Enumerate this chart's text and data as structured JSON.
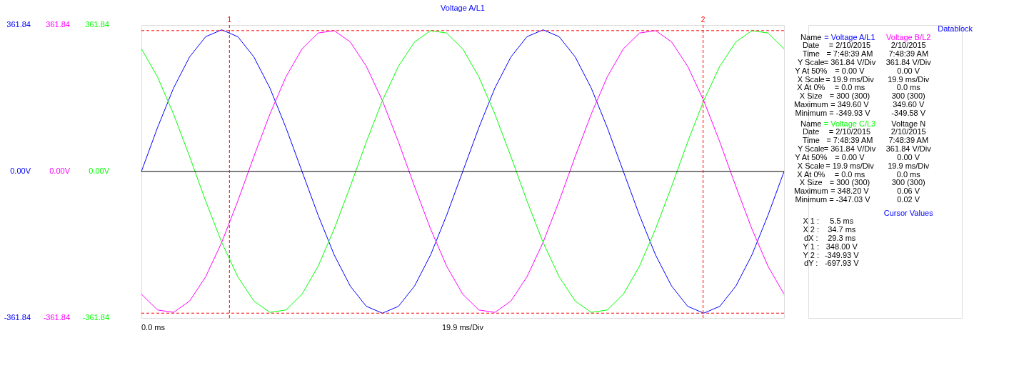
{
  "chart_data": {
    "type": "line",
    "title": "Voltage A/L1",
    "xlabel": "19.9 ms/Div",
    "categories": [
      null,
      null,
      null,
      null,
      null,
      null,
      null,
      null,
      null,
      null,
      null,
      null,
      null,
      null,
      null,
      null,
      null,
      null,
      null,
      null,
      null,
      null,
      null,
      null,
      null,
      null,
      null,
      null,
      null,
      null,
      null,
      null,
      null,
      null,
      null,
      null,
      null,
      null,
      null,
      null,
      null
    ],
    "series": [
      {
        "color": "#0000ff",
        "values": [
          0,
          108,
          206,
          283,
          333,
          350,
          333,
          283,
          206,
          108,
          0,
          -108,
          -206,
          -283,
          -333,
          -350,
          -333,
          -283,
          -206,
          -108,
          0,
          108,
          206,
          283,
          333,
          350,
          333,
          283,
          206,
          108,
          0,
          -108,
          -206,
          -283,
          -333,
          -350,
          -333,
          -283,
          -206,
          -108,
          0
        ]
      },
      {
        "color": "#ff00ff",
        "values": [
          -303,
          -342,
          -348,
          -320,
          -260,
          -175,
          -73,
          37,
          142,
          234,
          303,
          342,
          348,
          320,
          260,
          175,
          73,
          -37,
          -142,
          -234,
          -303,
          -342,
          -348,
          -320,
          -260,
          -175,
          -73,
          37,
          142,
          234,
          303,
          342,
          348,
          320,
          260,
          175,
          73,
          -37,
          -142,
          -234,
          -303
        ]
      },
      {
        "color": "#00ff00",
        "values": [
          303,
          234,
          142,
          37,
          -73,
          -175,
          -260,
          -320,
          -348,
          -342,
          -303,
          -234,
          -142,
          -37,
          73,
          175,
          260,
          320,
          348,
          342,
          303,
          234,
          142,
          37,
          -73,
          -175,
          -260,
          -320,
          -348,
          -342,
          -303,
          -234,
          -142,
          -37,
          73,
          175,
          260,
          320,
          348,
          342,
          303
        ]
      }
    ],
    "ylim": [
      -361.84,
      361.84
    ],
    "yticks": [
      {
        "value": -361.84,
        "label": "-361.84"
      },
      {
        "value": 0,
        "label": "0.00V"
      },
      {
        "value": 361.84,
        "label": "361.84"
      }
    ],
    "legend": false,
    "ref_lines": [
      {
        "axis": "y",
        "value": 0,
        "color": "#000000",
        "line_style": "solid"
      },
      {
        "axis": "y",
        "value": 348.0,
        "color": "#ff0000",
        "line_style": "dashed"
      },
      {
        "axis": "y",
        "value": -349.93,
        "color": "#ff0000",
        "line_style": "dashed"
      }
    ],
    "annotations": [
      "1",
      "2",
      "0.0 ms",
      "Datablock",
      "Name",
      "= Voltage A/L1",
      "Voltage B/L2",
      "Date",
      "= 2/10/2015",
      "2/10/2015",
      "Time",
      "= 7:48:39 AM",
      "7:48:39 AM",
      "Y Scale",
      "= 361.84 V/Div",
      "361.84 V/Div",
      "Y At 50%",
      "= 0.00 V",
      "0.00 V",
      "X Scale",
      "= 19.9 ms/Div",
      "19.9 ms/Div",
      "X At 0%",
      "= 0.0 ms",
      "0.0 ms",
      "X Size",
      "= 300 (300)",
      "300 (300)",
      "Maximum",
      "= 349.60 V",
      "349.60 V",
      "Minimum",
      "= -349.93 V",
      "-349.58 V",
      "Name",
      "= Voltage C/L3",
      "Voltage N",
      "Date",
      "= 2/10/2015",
      "2/10/2015",
      "Time",
      "= 7:48:39 AM",
      "7:48:39 AM",
      "Y Scale",
      "= 361.84 V/Div",
      "361.84 V/Div",
      "Y At 50%",
      "= 0.00 V",
      "0.00 V",
      "X Scale",
      "= 19.9 ms/Div",
      "19.9 ms/Div",
      "X At 0%",
      "= 0.0 ms",
      "0.0 ms",
      "X Size",
      "= 300 (300)",
      "300 (300)",
      "Maximum",
      "= 348.20 V",
      "0.06 V",
      "Minimum",
      "= -347.03 V",
      "0.02 V",
      "Cursor Values",
      "X 1 :",
      "5.5 ms",
      "X 2 :",
      "34.7 ms",
      "dX :",
      "29.3 ms",
      "Y 1 :",
      "348.00 V",
      "Y 2 :",
      "-349.93 V",
      "dY :",
      "-697.93 V"
    ]
  }
}
